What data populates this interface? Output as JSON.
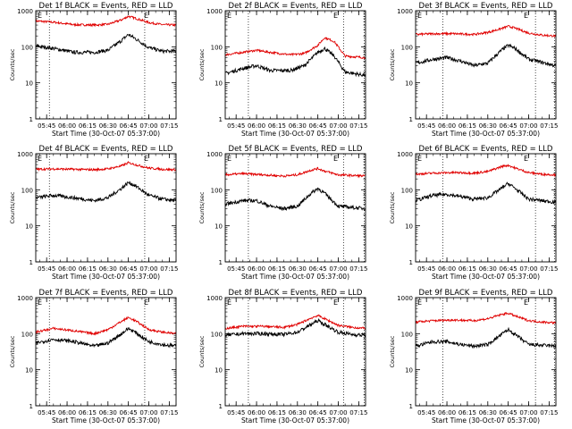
{
  "window": {
    "background": "#ffffff"
  },
  "colors": {
    "events": "#000000",
    "lld": "#e00000",
    "axis": "#000000"
  },
  "chart_data": [
    {
      "type": "line",
      "title": "Det 1f BLACK = Events, RED = LLD",
      "ylabel": "Counts/sec",
      "xlabel": "Start Time (30-Oct-07 05:37:00)",
      "xticks": [
        "05:45",
        "06:00",
        "06:15",
        "06:30",
        "06:45",
        "07:00",
        "07:15"
      ],
      "yticks": [
        "1",
        "10",
        "100",
        "1000"
      ],
      "yscale": "log",
      "ylim": [
        1,
        1000
      ],
      "xlim": [
        "05:37:00",
        "07:20:00"
      ],
      "markers": [
        "05:47",
        "06:57"
      ],
      "flag": "E",
      "series": [
        {
          "key": "lld",
          "x": [
            "05:37",
            "05:50",
            "06:05",
            "06:20",
            "06:30",
            "06:40",
            "06:45",
            "06:50",
            "07:00",
            "07:10",
            "07:20"
          ],
          "values": [
            520,
            480,
            410,
            400,
            420,
            560,
            700,
            620,
            470,
            410,
            400
          ]
        },
        {
          "key": "events",
          "x": [
            "05:37",
            "05:50",
            "06:05",
            "06:20",
            "06:30",
            "06:40",
            "06:45",
            "06:50",
            "07:00",
            "07:10",
            "07:20"
          ],
          "values": [
            105,
            90,
            70,
            70,
            80,
            150,
            220,
            170,
            95,
            75,
            75
          ]
        }
      ]
    },
    {
      "type": "line",
      "title": "Det 2f BLACK = Events, RED = LLD",
      "ylabel": "Counts/sec",
      "xlabel": "Start Time (30-Oct-07 05:37:00)",
      "xticks": [
        "05:45",
        "06:00",
        "06:15",
        "06:30",
        "06:45",
        "07:00",
        "07:15"
      ],
      "yticks": [
        "1",
        "10",
        "100",
        "1000"
      ],
      "yscale": "log",
      "ylim": [
        1,
        1000
      ],
      "xlim": [
        "05:37:00",
        "07:20:00"
      ],
      "markers": [
        "05:54",
        "07:04",
        "07:19"
      ],
      "flag": "E",
      "series": [
        {
          "key": "lld",
          "x": [
            "05:37",
            "05:50",
            "06:00",
            "06:10",
            "06:25",
            "06:35",
            "06:45",
            "06:50",
            "06:57",
            "07:05",
            "07:20"
          ],
          "values": [
            60,
            70,
            80,
            70,
            60,
            65,
            110,
            180,
            140,
            55,
            50
          ]
        },
        {
          "key": "events",
          "x": [
            "05:37",
            "05:50",
            "06:00",
            "06:10",
            "06:25",
            "06:35",
            "06:45",
            "06:50",
            "06:57",
            "07:05",
            "07:20"
          ],
          "values": [
            18,
            25,
            30,
            22,
            22,
            30,
            70,
            90,
            55,
            20,
            16
          ]
        }
      ]
    },
    {
      "type": "line",
      "title": "Det 3f BLACK = Events, RED = LLD",
      "ylabel": "Counts/sec",
      "xlabel": "Start Time (30-Oct-07 05:37:00)",
      "xticks": [
        "05:45",
        "06:00",
        "06:15",
        "06:30",
        "06:45",
        "07:00",
        "07:15"
      ],
      "yticks": [
        "1",
        "10",
        "100",
        "1000"
      ],
      "yscale": "log",
      "ylim": [
        1,
        1000
      ],
      "xlim": [
        "05:37:00",
        "07:20:00"
      ],
      "markers": [
        "05:57",
        "07:05",
        "07:19"
      ],
      "flag": "E",
      "series": [
        {
          "key": "lld",
          "x": [
            "05:37",
            "05:50",
            "06:05",
            "06:20",
            "06:30",
            "06:40",
            "06:45",
            "06:50",
            "07:00",
            "07:10",
            "07:20"
          ],
          "values": [
            220,
            230,
            230,
            220,
            250,
            320,
            370,
            330,
            240,
            210,
            200
          ]
        },
        {
          "key": "events",
          "x": [
            "05:37",
            "05:50",
            "06:00",
            "06:10",
            "06:20",
            "06:30",
            "06:40",
            "06:45",
            "06:50",
            "07:00",
            "07:20"
          ],
          "values": [
            35,
            45,
            50,
            40,
            30,
            35,
            80,
            110,
            90,
            45,
            30
          ]
        }
      ]
    },
    {
      "type": "line",
      "title": "Det 4f BLACK = Events, RED = LLD",
      "ylabel": "Counts/sec",
      "xlabel": "Start Time (30-Oct-07 05:37:00)",
      "xticks": [
        "05:45",
        "06:00",
        "06:15",
        "06:30",
        "06:45",
        "07:00",
        "07:15"
      ],
      "yticks": [
        "1",
        "10",
        "100",
        "1000"
      ],
      "yscale": "log",
      "ylim": [
        1,
        1000
      ],
      "xlim": [
        "05:37:00",
        "07:20:00"
      ],
      "markers": [
        "05:47",
        "06:57"
      ],
      "flag": "E",
      "series": [
        {
          "key": "lld",
          "x": [
            "05:37",
            "05:50",
            "06:05",
            "06:20",
            "06:30",
            "06:40",
            "06:45",
            "06:50",
            "07:00",
            "07:10",
            "07:20"
          ],
          "values": [
            370,
            380,
            370,
            360,
            380,
            460,
            560,
            500,
            400,
            370,
            360
          ]
        },
        {
          "key": "events",
          "x": [
            "05:37",
            "05:50",
            "06:05",
            "06:20",
            "06:30",
            "06:40",
            "06:45",
            "06:50",
            "07:00",
            "07:10",
            "07:20"
          ],
          "values": [
            60,
            70,
            60,
            50,
            60,
            110,
            160,
            130,
            70,
            55,
            50
          ]
        }
      ]
    },
    {
      "type": "line",
      "title": "Det 5f BLACK = Events, RED = LLD",
      "ylabel": "Counts/sec",
      "xlabel": "Start Time (30-Oct-07 05:37:00)",
      "xticks": [
        "05:45",
        "06:00",
        "06:15",
        "06:30",
        "06:45",
        "07:00",
        "07:15"
      ],
      "yticks": [
        "1",
        "10",
        "100",
        "1000"
      ],
      "yscale": "log",
      "ylim": [
        1,
        1000
      ],
      "xlim": [
        "05:37:00",
        "07:20:00"
      ],
      "markers": [
        "05:54",
        "07:04",
        "07:19"
      ],
      "flag": "E",
      "series": [
        {
          "key": "lld",
          "x": [
            "05:37",
            "05:50",
            "06:05",
            "06:20",
            "06:30",
            "06:40",
            "06:45",
            "06:50",
            "07:00",
            "07:10",
            "07:20"
          ],
          "values": [
            260,
            280,
            260,
            240,
            260,
            350,
            390,
            330,
            260,
            250,
            240
          ]
        },
        {
          "key": "events",
          "x": [
            "05:37",
            "05:50",
            "06:00",
            "06:10",
            "06:20",
            "06:30",
            "06:40",
            "06:45",
            "06:50",
            "07:00",
            "07:20"
          ],
          "values": [
            40,
            50,
            50,
            35,
            30,
            35,
            80,
            110,
            80,
            35,
            30
          ]
        }
      ]
    },
    {
      "type": "line",
      "title": "Det 6f BLACK = Events, RED = LLD",
      "ylabel": "Counts/sec",
      "xlabel": "Start Time (30-Oct-07 05:37:00)",
      "xticks": [
        "05:45",
        "06:00",
        "06:15",
        "06:30",
        "06:45",
        "07:00",
        "07:15"
      ],
      "yticks": [
        "1",
        "10",
        "100",
        "1000"
      ],
      "yscale": "log",
      "ylim": [
        1,
        1000
      ],
      "xlim": [
        "05:37:00",
        "07:20:00"
      ],
      "markers": [
        "05:57",
        "07:05",
        "07:19"
      ],
      "flag": "E",
      "series": [
        {
          "key": "lld",
          "x": [
            "05:37",
            "05:50",
            "06:05",
            "06:20",
            "06:30",
            "06:40",
            "06:45",
            "06:50",
            "07:00",
            "07:10",
            "07:20"
          ],
          "values": [
            270,
            290,
            300,
            290,
            320,
            440,
            480,
            400,
            300,
            270,
            260
          ]
        },
        {
          "key": "events",
          "x": [
            "05:37",
            "05:50",
            "06:00",
            "06:10",
            "06:20",
            "06:30",
            "06:40",
            "06:45",
            "06:50",
            "07:00",
            "07:20"
          ],
          "values": [
            50,
            70,
            75,
            65,
            55,
            60,
            110,
            150,
            110,
            55,
            45
          ]
        }
      ]
    },
    {
      "type": "line",
      "title": "Det 7f BLACK = Events, RED = LLD",
      "ylabel": "Counts/sec",
      "xlabel": "Start Time (30-Oct-07 05:37:00)",
      "xticks": [
        "05:45",
        "06:00",
        "06:15",
        "06:30",
        "06:45",
        "07:00",
        "07:15"
      ],
      "yticks": [
        "1",
        "10",
        "100",
        "1000"
      ],
      "yscale": "log",
      "ylim": [
        1,
        1000
      ],
      "xlim": [
        "05:37:00",
        "07:20:00"
      ],
      "markers": [
        "05:47",
        "06:57"
      ],
      "flag": "E",
      "series": [
        {
          "key": "lld",
          "x": [
            "05:37",
            "05:50",
            "06:05",
            "06:20",
            "06:30",
            "06:40",
            "06:45",
            "06:50",
            "07:00",
            "07:10",
            "07:20"
          ],
          "values": [
            110,
            140,
            120,
            100,
            130,
            220,
            280,
            230,
            130,
            110,
            100
          ]
        },
        {
          "key": "events",
          "x": [
            "05:37",
            "05:50",
            "06:05",
            "06:20",
            "06:30",
            "06:40",
            "06:45",
            "06:50",
            "07:00",
            "07:10",
            "07:20"
          ],
          "values": [
            55,
            70,
            60,
            45,
            55,
            100,
            140,
            110,
            60,
            50,
            45
          ]
        }
      ]
    },
    {
      "type": "line",
      "title": "Det 8f BLACK = Events, RED = LLD",
      "ylabel": "Counts/sec",
      "xlabel": "Start Time (30-Oct-07 05:37:00)",
      "xticks": [
        "05:45",
        "06:00",
        "06:15",
        "06:30",
        "06:45",
        "07:00",
        "07:15"
      ],
      "yticks": [
        "1",
        "10",
        "100",
        "1000"
      ],
      "yscale": "log",
      "ylim": [
        1,
        1000
      ],
      "xlim": [
        "05:37:00",
        "07:20:00"
      ],
      "markers": [
        "05:54",
        "07:04",
        "07:19"
      ],
      "flag": "E",
      "series": [
        {
          "key": "lld",
          "x": [
            "05:37",
            "05:50",
            "06:05",
            "06:20",
            "06:30",
            "06:40",
            "06:45",
            "06:50",
            "07:00",
            "07:10",
            "07:20"
          ],
          "values": [
            140,
            160,
            160,
            150,
            180,
            270,
            320,
            260,
            170,
            150,
            140
          ]
        },
        {
          "key": "events",
          "x": [
            "05:37",
            "05:50",
            "06:05",
            "06:20",
            "06:30",
            "06:40",
            "06:45",
            "06:50",
            "07:00",
            "07:10",
            "07:20"
          ],
          "values": [
            90,
            100,
            100,
            95,
            110,
            180,
            230,
            180,
            110,
            95,
            90
          ]
        }
      ]
    },
    {
      "type": "line",
      "title": "Det 9f BLACK = Events, RED = LLD",
      "ylabel": "Counts/sec",
      "xlabel": "Start Time (30-Oct-07 05:37:00)",
      "xticks": [
        "05:45",
        "06:00",
        "06:15",
        "06:30",
        "06:45",
        "07:00",
        "07:15"
      ],
      "yticks": [
        "1",
        "10",
        "100",
        "1000"
      ],
      "yscale": "log",
      "ylim": [
        1,
        1000
      ],
      "xlim": [
        "05:37:00",
        "07:20:00"
      ],
      "markers": [
        "05:57",
        "07:05",
        "07:19"
      ],
      "flag": "E",
      "series": [
        {
          "key": "lld",
          "x": [
            "05:37",
            "05:50",
            "06:05",
            "06:20",
            "06:30",
            "06:40",
            "06:45",
            "06:50",
            "07:00",
            "07:10",
            "07:20"
          ],
          "values": [
            210,
            230,
            240,
            230,
            260,
            340,
            370,
            310,
            230,
            210,
            200
          ]
        },
        {
          "key": "events",
          "x": [
            "05:37",
            "05:50",
            "06:00",
            "06:10",
            "06:20",
            "06:30",
            "06:40",
            "06:45",
            "06:50",
            "07:00",
            "07:20"
          ],
          "values": [
            45,
            60,
            60,
            50,
            45,
            50,
            95,
            130,
            95,
            50,
            45
          ]
        }
      ]
    }
  ]
}
